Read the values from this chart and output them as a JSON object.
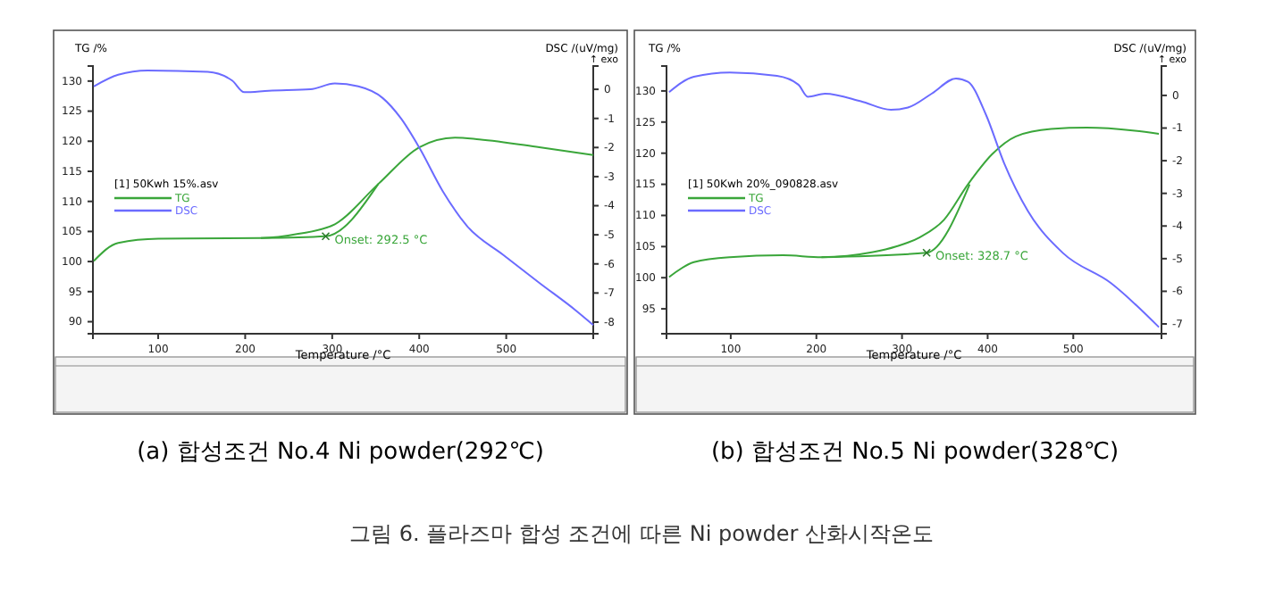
{
  "chart_data": [
    {
      "type": "line",
      "ylabel": "TG /%",
      "y2label": "DSC /(uV/mg)",
      "xlabel": "Temperature /°C",
      "legend_title": "[1] 50Kwh 15%.asv",
      "legend": "left",
      "xlim": [
        25,
        600
      ],
      "xticks": [
        100,
        200,
        300,
        400,
        500
      ],
      "ylim": [
        88,
        132.5
      ],
      "yticks": [
        90,
        95,
        100,
        105,
        110,
        115,
        120,
        125,
        130
      ],
      "y2lim": [
        -8.4,
        0.8
      ],
      "y2ticks": [
        0,
        -1,
        -2,
        -3,
        -4,
        -5,
        -6,
        -7,
        -8
      ],
      "annotations": [
        "(a) 합성조건 No.4 Ni powder(292℃)",
        "↑ exo",
        {
          "text": "Onset: 292.5 °C",
          "x": 292.5,
          "y": 104.2
        },
        "그림 6. 플라즈마 합성 조건에 따른 Ni powder 산화시작온도"
      ],
      "series": [
        {
          "name": "TG",
          "color": "#3aa63a",
          "x": [
            26,
            54,
            100,
            218,
            261,
            303,
            353,
            400,
            441,
            469,
            538,
            600
          ],
          "values": [
            100.1,
            103.1,
            103.8,
            103.9,
            104.6,
            106.2,
            112.9,
            119,
            120.6,
            120.3,
            119,
            117.7
          ]
        },
        {
          "name": "DSC",
          "color": "#6b6bff",
          "axis": "y2",
          "x": [
            26,
            54,
            88,
            157,
            185,
            199,
            227,
            275,
            303,
            330,
            358,
            379,
            400,
            427,
            455,
            497,
            538,
            580,
            600
          ],
          "values": [
            0.1,
            0.5,
            0.65,
            0.6,
            0.3,
            -0.1,
            -0.05,
            0,
            0.2,
            0.1,
            -0.3,
            -1.0,
            -2.0,
            -3.5,
            -4.7,
            -5.7,
            -6.65,
            -7.6,
            -8.1
          ]
        },
        {
          "color": "#3aa63a",
          "x": [
            218,
            292.5,
            353
          ],
          "values": [
            103.9,
            104.2,
            112.9
          ]
        }
      ]
    },
    {
      "type": "line",
      "ylabel": "TG /%",
      "y2label": "DSC /(uV/mg)",
      "xlabel": "Temperature /°C",
      "legend_title": "[1] 50Kwh 20%_090828.asv",
      "legend": "left",
      "xlim": [
        25,
        603
      ],
      "xticks": [
        100,
        200,
        300,
        400,
        500
      ],
      "ylim": [
        91,
        134
      ],
      "yticks": [
        95,
        100,
        105,
        110,
        115,
        120,
        125,
        130
      ],
      "y2lim": [
        -7.3,
        0.9
      ],
      "y2ticks": [
        0,
        -1,
        -2,
        -3,
        -4,
        -5,
        -6,
        -7
      ],
      "annotations": [
        "(b) 합성조건 No.5 Ni powder(328℃)",
        "↑ exo",
        {
          "text": "Onset: 328.7 °C",
          "x": 328.7,
          "y": 104.0
        }
      ],
      "series": [
        {
          "name": "TG",
          "color": "#3aa63a",
          "x": [
            28,
            57,
            99,
            161,
            206,
            266,
            293,
            321,
            349,
            377,
            405,
            433,
            474,
            516,
            572,
            600
          ],
          "values": [
            100.1,
            102.5,
            103.3,
            103.6,
            103.3,
            104.1,
            105,
            106.5,
            109.3,
            115,
            119.8,
            122.7,
            123.9,
            124.1,
            123.6,
            123.1
          ]
        },
        {
          "name": "DSC",
          "color": "#6b6bff",
          "axis": "y2",
          "x": [
            28,
            57,
            99,
            154,
            179,
            190,
            210,
            252,
            287,
            307,
            335,
            363,
            377,
            398,
            419,
            447,
            488,
            544,
            600
          ],
          "values": [
            0.1,
            0.57,
            0.7,
            0.6,
            0.33,
            -0.04,
            0.05,
            -0.18,
            -0.44,
            -0.37,
            0.06,
            0.52,
            0.42,
            -0.59,
            -2.06,
            -3.54,
            -4.83,
            -5.75,
            -7.1
          ]
        },
        {
          "color": "#3aa63a",
          "x": [
            206,
            328.7,
            379
          ],
          "values": [
            103.3,
            104.0,
            115
          ]
        }
      ]
    }
  ]
}
